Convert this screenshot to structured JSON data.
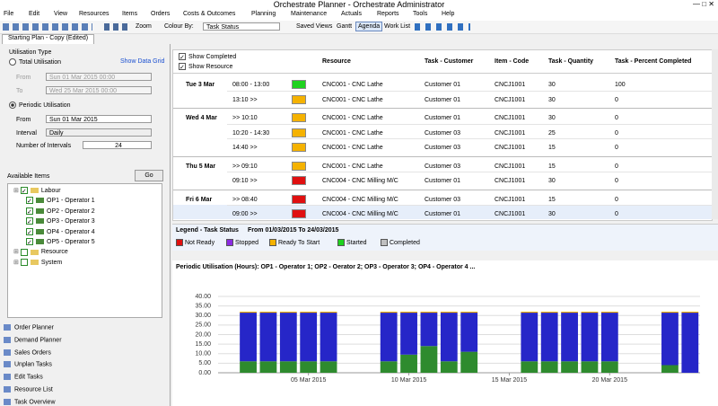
{
  "window": {
    "title": "Orchestrate Planner - Orchestrate Administrator"
  },
  "menu": [
    "File",
    "Edit",
    "View",
    "Resources",
    "Items",
    "Orders",
    "Costs & Outcomes",
    "Planning",
    "Maintenance",
    "Actuals",
    "Reports",
    "Tools",
    "Help"
  ],
  "toolbar": {
    "zoom": "Zoom",
    "colour_by": "Colour By:",
    "colour_value": "Task Status",
    "saved_views": "Saved Views",
    "gantt": "Gantt",
    "agenda": "Agenda",
    "work_list": "Work List"
  },
  "tab": "Starting Plan - Copy (Edited)",
  "left": {
    "utilisation_type": "Utilisation Type",
    "total": "Total Utilisation",
    "show_grid": "Show Data Grid",
    "from_label": "From",
    "from_value": "Sun 01 Mar 2015 00:00",
    "to_label": "To",
    "to_value": "Wed 25 Mar 2015 00:00",
    "periodic": "Periodic Utilisation",
    "p_from_label": "From",
    "p_from_value": "Sun 01 Mar 2015",
    "interval_label": "Interval",
    "interval_value": "Daily",
    "intervals_label": "Number of Intervals",
    "intervals_value": 24,
    "available": "Available Items",
    "go": "Go",
    "tree": [
      {
        "label": "Labour",
        "level": 0
      },
      {
        "label": "OP1 - Operator 1",
        "level": 1
      },
      {
        "label": "OP2 - Operator 2",
        "level": 1
      },
      {
        "label": "OP3 - Operator 3",
        "level": 1
      },
      {
        "label": "OP4 - Operator 4",
        "level": 1
      },
      {
        "label": "OP5 - Operator 5",
        "level": 1
      },
      {
        "label": "Resource",
        "level": 0
      },
      {
        "label": "System",
        "level": 0
      }
    ],
    "nav": [
      "Order Planner",
      "Demand Planner",
      "Sales Orders",
      "Unplan Tasks",
      "Edit Tasks",
      "Resource List",
      "Task Overview"
    ]
  },
  "agenda": {
    "show_completed": "Show Completed",
    "show_resource": "Show Resource",
    "columns": [
      "Resource",
      "Task - Customer",
      "Item - Code",
      "Task - Quantity",
      "Task - Percent Completed"
    ],
    "days": [
      {
        "date": "Tue 3 Mar",
        "rows": [
          {
            "time": "08:00 - 13:00",
            "color": "#1ed21e",
            "resource": "CNC001 - CNC Lathe",
            "customer": "Customer 01",
            "item": "CNCJ1001",
            "qty": 30,
            "pct": 100
          },
          {
            "time": "13:10 >>",
            "color": "#f5b200",
            "resource": "CNC001 - CNC Lathe",
            "customer": "Customer 01",
            "item": "CNCJ1001",
            "qty": 30,
            "pct": 0
          }
        ]
      },
      {
        "date": "Wed 4 Mar",
        "rows": [
          {
            "time": ">> 10:10",
            "color": "#f5b200",
            "resource": "CNC001 - CNC Lathe",
            "customer": "Customer 01",
            "item": "CNCJ1001",
            "qty": 30,
            "pct": 0
          },
          {
            "time": "10:20 - 14:30",
            "color": "#f5b200",
            "resource": "CNC001 - CNC Lathe",
            "customer": "Customer 03",
            "item": "CNCJ1001",
            "qty": 25,
            "pct": 0
          },
          {
            "time": "14:40 >>",
            "color": "#f5b200",
            "resource": "CNC001 - CNC Lathe",
            "customer": "Customer 03",
            "item": "CNCJ1001",
            "qty": 15,
            "pct": 0
          }
        ]
      },
      {
        "date": "Thu 5 Mar",
        "rows": [
          {
            "time": ">> 09:10",
            "color": "#f5b200",
            "resource": "CNC001 - CNC Lathe",
            "customer": "Customer 03",
            "item": "CNCJ1001",
            "qty": 15,
            "pct": 0
          },
          {
            "time": "09:10 >>",
            "color": "#e01010",
            "resource": "CNC004 - CNC Milling M/C",
            "customer": "Customer 01",
            "item": "CNCJ1001",
            "qty": 30,
            "pct": 0
          }
        ]
      },
      {
        "date": "Fri 6 Mar",
        "rows": [
          {
            "time": ">> 08:40",
            "color": "#e01010",
            "resource": "CNC004 - CNC Milling M/C",
            "customer": "Customer 03",
            "item": "CNCJ1001",
            "qty": 15,
            "pct": 0
          },
          {
            "time": "09:00 >>",
            "color": "#e01010",
            "resource": "CNC004 - CNC Milling M/C",
            "customer": "Customer 01",
            "item": "CNCJ1001",
            "qty": 30,
            "pct": 0
          }
        ]
      }
    ]
  },
  "legend": {
    "title": "Legend - Task Status",
    "range": "From 01/03/2015 To 24/03/2015",
    "items": [
      {
        "label": "Not Ready",
        "color": "#e01010"
      },
      {
        "label": "Stopped",
        "color": "#8a2be2"
      },
      {
        "label": "Ready To Start",
        "color": "#f5b200"
      },
      {
        "label": "Started",
        "color": "#1ed21e"
      },
      {
        "label": "Completed",
        "color": "#c0c0c0"
      }
    ]
  },
  "chart_data": {
    "type": "stacked_bar",
    "title": "Periodic Utilisation (Hours): OP1 - Operator 1; OP2 - Oerator 2; OP3 - Operator 3; OP4 - Operator 4 ...",
    "categories": [
      null,
      null,
      null,
      null,
      "05 Mar 2015",
      null,
      null,
      null,
      null,
      "10 Mar 2015",
      null,
      null,
      null,
      null,
      "15 Mar 2015",
      null,
      null,
      null,
      null,
      "20 Mar 2015",
      null,
      null,
      null,
      null
    ],
    "series": [
      {
        "color": "#2e8b2e",
        "values": [
          null,
          6,
          6,
          6,
          6,
          6,
          null,
          null,
          6,
          9.5,
          14,
          6,
          11,
          null,
          null,
          6,
          6,
          6,
          6,
          6,
          null,
          null,
          4,
          0
        ]
      },
      {
        "color": "#2626c8",
        "values": [
          null,
          25.5,
          25.5,
          25.5,
          25.5,
          25.5,
          null,
          null,
          25.5,
          22,
          17.5,
          25.5,
          20.5,
          null,
          null,
          25.5,
          25.5,
          25.5,
          25.5,
          25.5,
          null,
          null,
          27.5,
          31.5
        ]
      },
      {
        "color": "#f5b200",
        "values": [
          null,
          0.5,
          0.5,
          0.5,
          0.5,
          0.5,
          null,
          null,
          0.5,
          0.5,
          0.5,
          0.5,
          0.5,
          null,
          null,
          0.5,
          0.5,
          0.5,
          0.5,
          0.5,
          null,
          null,
          0.5,
          0.5
        ]
      }
    ],
    "ylim": [
      0,
      40
    ],
    "yticks": [
      {
        "value": 0,
        "label": "0.00"
      },
      {
        "value": 5,
        "label": "5.00"
      },
      {
        "value": 10,
        "label": "10.00"
      },
      {
        "value": 15,
        "label": "15.00"
      },
      {
        "value": 20,
        "label": "20.00"
      },
      {
        "value": 25,
        "label": "25.00"
      },
      {
        "value": 30,
        "label": "30.00"
      },
      {
        "value": 35,
        "label": "35.00"
      },
      {
        "value": 40,
        "label": "40.00"
      }
    ],
    "grid": true
  }
}
